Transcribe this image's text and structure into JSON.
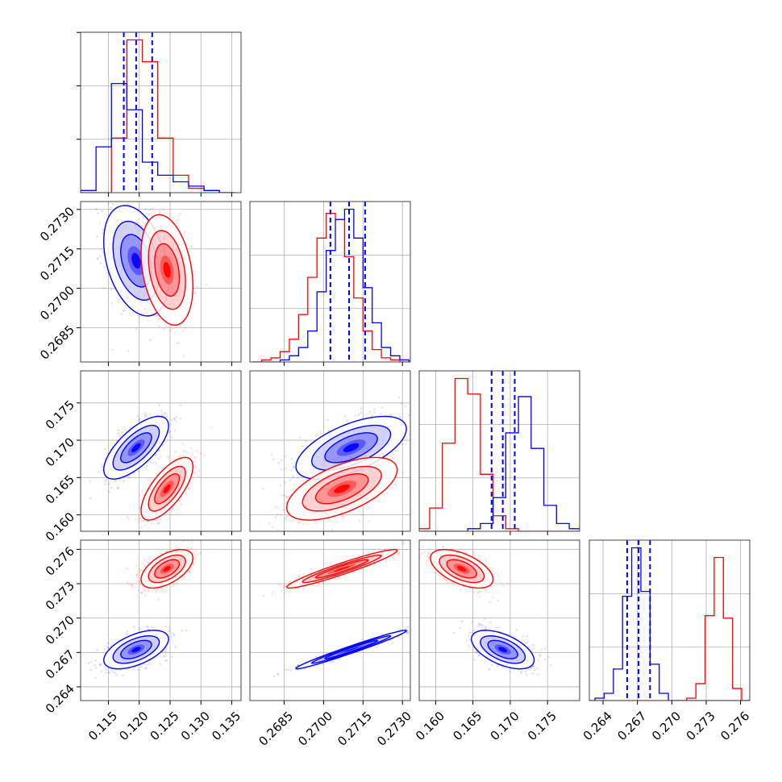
{
  "chart_data": {
    "type": "corner",
    "grid": true,
    "colors": {
      "posterior_b": "#0000ff",
      "posterior_r": "#ff0000"
    },
    "series": [
      {
        "color": "#0000ff",
        "mean": [
          0.1195,
          0.27105,
          0.169,
          0.26725
        ],
        "sd": [
          0.0025,
          0.001,
          0.002,
          0.0008
        ],
        "quantiles_shown": true
      },
      {
        "color": "#ff0000",
        "mean": [
          0.1245,
          0.2707,
          0.1635,
          0.2743
        ],
        "sd": [
          0.002,
          0.001,
          0.002,
          0.0008
        ],
        "quantiles_shown": false
      }
    ],
    "quantile_lines": [
      [
        0.1175,
        0.1195,
        0.1221
      ],
      [
        0.27026,
        0.27097,
        0.27158
      ],
      [
        0.1675,
        0.169,
        0.1706
      ],
      [
        0.2661,
        0.2671,
        0.2681
      ]
    ],
    "histograms": [
      {
        "edges": [
          0.1105,
          0.113,
          0.1155,
          0.118,
          0.1205,
          0.123,
          0.1255,
          0.128,
          0.1305,
          0.133,
          0.1355
        ],
        "blue": [
          1,
          21,
          50,
          38,
          14,
          8,
          5,
          3,
          1,
          0
        ],
        "red": [
          0,
          0,
          25,
          70,
          60,
          25,
          8,
          2,
          1,
          0
        ]
      },
      {
        "edges": [
          0.2673,
          0.26765,
          0.268,
          0.26835,
          0.2687,
          0.26905,
          0.2694,
          0.26975,
          0.2701,
          0.27045,
          0.2708,
          0.27115,
          0.2715,
          0.27185,
          0.2722,
          0.27255,
          0.2729,
          0.27325
        ],
        "blue": [
          0,
          0,
          0,
          1,
          3,
          7,
          15,
          34,
          54,
          69,
          74,
          60,
          36,
          19,
          7,
          3,
          1
        ],
        "red": [
          0,
          1,
          2,
          5,
          11,
          23,
          41,
          60,
          72,
          69,
          51,
          31,
          15,
          6,
          2,
          1,
          0
        ]
      },
      {
        "edges": [
          0.1575,
          0.1592,
          0.1609,
          0.1626,
          0.1643,
          0.166,
          0.1677,
          0.1694,
          0.1711,
          0.1728,
          0.1745,
          0.1762,
          0.1779,
          0.1796
        ],
        "blue": [
          0,
          0,
          0,
          0,
          1,
          3,
          13,
          38,
          52,
          32,
          10,
          3,
          1
        ],
        "red": [
          1,
          9,
          34,
          59,
          53,
          22,
          6,
          1,
          0,
          0,
          0,
          0,
          0
        ]
      },
      {
        "edges": [
          0.2625,
          0.2633,
          0.2641,
          0.2649,
          0.2657,
          0.2665,
          0.2673,
          0.2681,
          0.2689,
          0.2697,
          0.2705,
          0.2713,
          0.2721,
          0.2729,
          0.2737,
          0.2745,
          0.2753,
          0.2761,
          0.2769
        ],
        "blue": [
          0,
          1,
          3,
          13,
          43,
          63,
          45,
          15,
          3,
          0,
          0,
          0,
          0,
          0,
          0,
          0,
          0,
          0
        ],
        "red": [
          0,
          0,
          0,
          0,
          0,
          0,
          0,
          0,
          0,
          0,
          0,
          1,
          7,
          35,
          59,
          34,
          5,
          0
        ]
      }
    ],
    "axes": [
      {
        "range": [
          0.1105,
          0.1365
        ],
        "ticks": [
          0.115,
          0.12,
          0.125,
          0.13,
          0.135
        ],
        "tick_labels": [
          "0.115",
          "0.120",
          "0.125",
          "0.130",
          "0.135"
        ]
      },
      {
        "range": [
          0.2672,
          0.2733
        ],
        "ticks": [
          0.2685,
          0.27,
          0.2715,
          0.273
        ],
        "tick_labels": [
          "0.2685",
          "0.2700",
          "0.2715",
          "0.2730"
        ]
      },
      {
        "range": [
          0.1578,
          0.1793
        ],
        "ticks": [
          0.16,
          0.165,
          0.17,
          0.175
        ],
        "tick_labels": [
          "0.160",
          "0.165",
          "0.170",
          "0.175"
        ]
      },
      {
        "range": [
          0.2628,
          0.2768
        ],
        "ticks": [
          0.264,
          0.267,
          0.27,
          0.273,
          0.276
        ],
        "tick_labels": [
          "0.264",
          "0.267",
          "0.270",
          "0.273",
          "0.276"
        ]
      }
    ]
  }
}
